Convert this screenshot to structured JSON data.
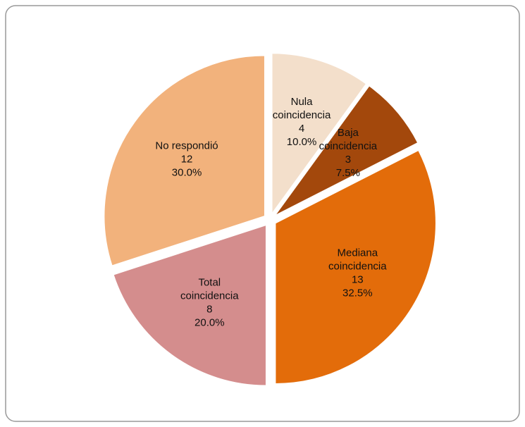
{
  "chart_data": {
    "type": "pie",
    "categories": [
      "Nula coincidencia",
      "Baja coincidencia",
      "Mediana coincidencia",
      "Total coincidencia",
      "No respondió"
    ],
    "values": [
      4,
      3,
      13,
      8,
      12
    ],
    "percentages": [
      10,
      7.5,
      32.5,
      20,
      30
    ],
    "percentage_labels": [
      "10.0%",
      "7.5%",
      "32.5%",
      "20.0%",
      "30.0%"
    ],
    "colors": [
      "#f3dfcb",
      "#a3480c",
      "#e36c0a",
      "#d48d8d",
      "#f2b27c"
    ]
  }
}
